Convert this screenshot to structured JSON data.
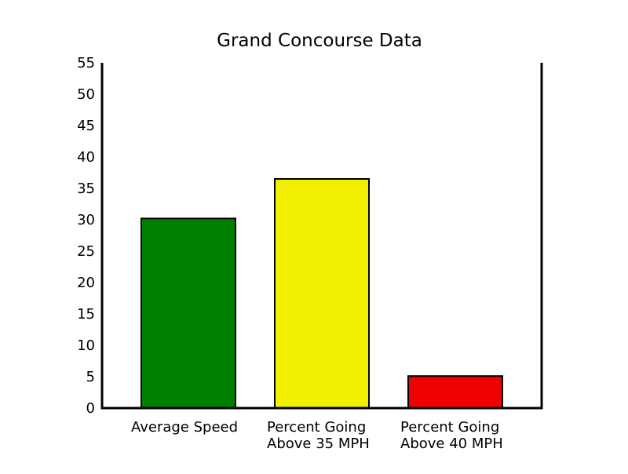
{
  "chart_data": {
    "type": "bar",
    "title": "Grand Concourse Data",
    "xlabel": "",
    "ylabel": "",
    "ylim": [
      0,
      55
    ],
    "yticks": [
      0,
      5,
      10,
      15,
      20,
      25,
      30,
      35,
      40,
      45,
      50,
      55
    ],
    "grid": false,
    "legend": "none",
    "categories": [
      [
        "Average Speed"
      ],
      [
        "Percent Going",
        "Above 35 MPH"
      ],
      [
        "Percent Going",
        "Above 40 MPH"
      ]
    ],
    "values": [
      30.2,
      36.5,
      5.1
    ],
    "colors": [
      "#008000",
      "#f0f000",
      "#f00000"
    ]
  }
}
